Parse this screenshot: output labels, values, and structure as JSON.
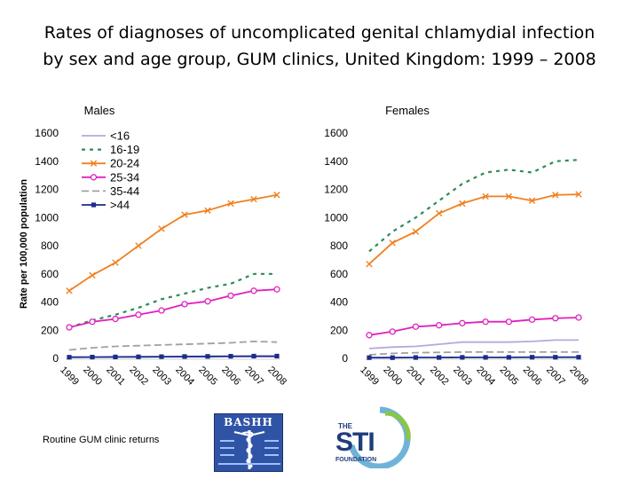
{
  "title_line1": "Rates of diagnoses of uncomplicated genital chlamydial infection",
  "title_line2": "by sex and age group, GUM clinics, United Kingdom: 1999 – 2008",
  "footnote": "Routine GUM clinic returns",
  "logos": {
    "bashh": "BASHH",
    "sti_the": "THE",
    "sti_big": "STI",
    "sti_foundation": "FOUNDATION"
  },
  "chart_data": [
    {
      "type": "line",
      "title": "Males",
      "ylabel": "Rate per 100,000 population",
      "xlabel": "",
      "ylim": [
        0,
        1600
      ],
      "yticks": [
        0,
        200,
        400,
        600,
        800,
        1000,
        1200,
        1400,
        1600
      ],
      "categories": [
        "1999",
        "2000",
        "2001",
        "2002",
        "2003",
        "2004",
        "2005",
        "2006",
        "2007",
        "2008"
      ],
      "legend": "top-left inside plot",
      "series": [
        {
          "name": "<16",
          "color": "#b9a6e0",
          "dash": "",
          "marker": "none",
          "values": [
            8,
            9,
            10,
            11,
            11,
            11,
            11,
            12,
            12,
            12
          ]
        },
        {
          "name": "16-19",
          "color": "#2e8b57",
          "dash": "4,5",
          "marker": "none",
          "values": [
            220,
            270,
            310,
            360,
            420,
            460,
            500,
            530,
            600,
            600
          ]
        },
        {
          "name": "20-24",
          "color": "#f08020",
          "dash": "",
          "marker": "x",
          "values": [
            480,
            590,
            680,
            800,
            920,
            1020,
            1050,
            1100,
            1130,
            1160
          ]
        },
        {
          "name": "25-34",
          "color": "#e020c0",
          "dash": "",
          "marker": "circle",
          "values": [
            220,
            260,
            280,
            310,
            340,
            385,
            405,
            445,
            480,
            490
          ]
        },
        {
          "name": "35-44",
          "color": "#a0a0a0",
          "dash": "8,4",
          "marker": "none",
          "values": [
            60,
            75,
            85,
            90,
            95,
            100,
            105,
            110,
            120,
            115
          ]
        },
        {
          "name": ">44",
          "color": "#1a2c8c",
          "dash": "",
          "marker": "square",
          "values": [
            8,
            9,
            10,
            11,
            12,
            13,
            14,
            15,
            16,
            16
          ]
        }
      ]
    },
    {
      "type": "line",
      "title": "Females",
      "ylabel": "",
      "xlabel": "",
      "ylim": [
        0,
        1600
      ],
      "yticks": [
        0,
        200,
        400,
        600,
        800,
        1000,
        1200,
        1400,
        1600
      ],
      "categories": [
        "1999",
        "2000",
        "2001",
        "2002",
        "2003",
        "2004",
        "2005",
        "2006",
        "2007",
        "2008"
      ],
      "series": [
        {
          "name": "<16",
          "color": "#b9a6e0",
          "dash": "",
          "marker": "none",
          "values": [
            70,
            80,
            85,
            100,
            115,
            115,
            115,
            120,
            130,
            130
          ]
        },
        {
          "name": "16-19",
          "color": "#2e8b57",
          "dash": "4,5",
          "marker": "none",
          "values": [
            760,
            900,
            1000,
            1120,
            1240,
            1320,
            1340,
            1320,
            1400,
            1410
          ]
        },
        {
          "name": "20-24",
          "color": "#f08020",
          "dash": "",
          "marker": "x",
          "values": [
            670,
            820,
            900,
            1030,
            1100,
            1150,
            1150,
            1120,
            1160,
            1165
          ]
        },
        {
          "name": "25-34",
          "color": "#e020c0",
          "dash": "",
          "marker": "circle",
          "values": [
            165,
            190,
            225,
            235,
            250,
            260,
            260,
            275,
            285,
            290
          ]
        },
        {
          "name": "35-44",
          "color": "#a0a0a0",
          "dash": "8,4",
          "marker": "none",
          "values": [
            25,
            35,
            40,
            42,
            45,
            45,
            45,
            45,
            45,
            45
          ]
        },
        {
          "name": ">44",
          "color": "#1a2c8c",
          "dash": "",
          "marker": "square",
          "values": [
            5,
            5,
            6,
            6,
            7,
            7,
            7,
            8,
            8,
            8
          ]
        }
      ]
    }
  ]
}
